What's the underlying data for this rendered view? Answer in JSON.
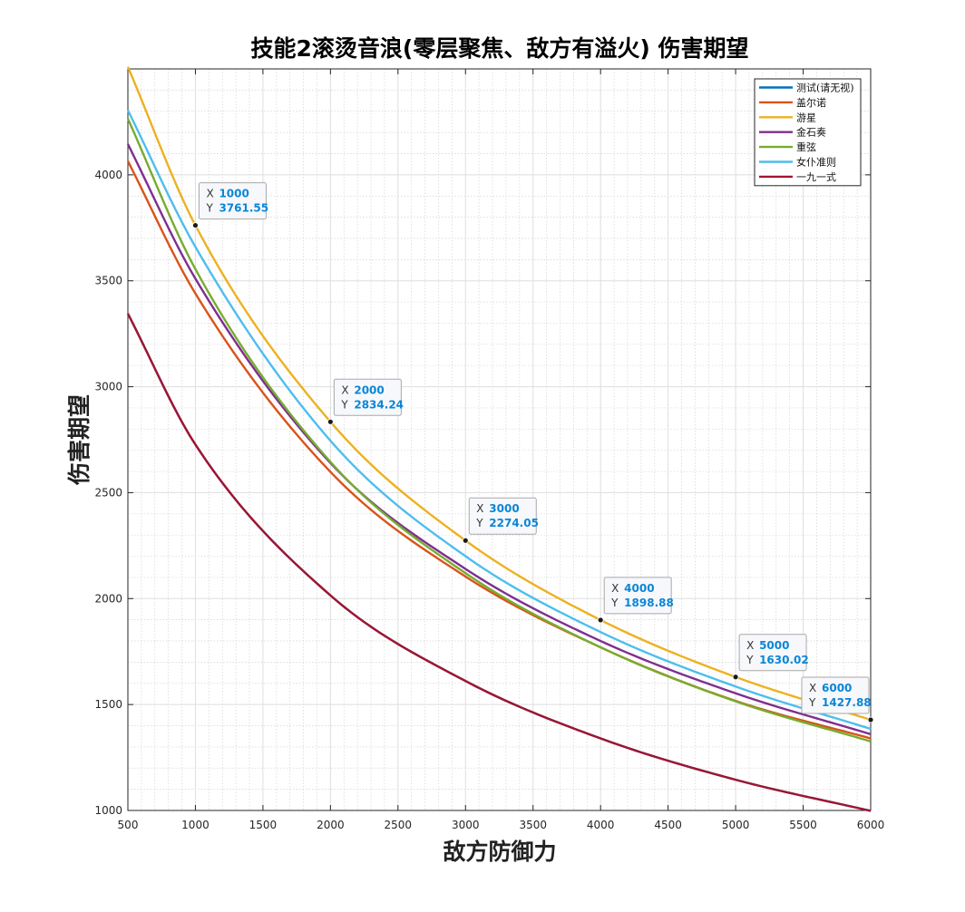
{
  "chart_data": {
    "type": "line",
    "title": "技能2滚烫音浪(零层聚焦、敌方有溢火) 伤害期望",
    "xlabel": "敌方防御力",
    "ylabel": "伤害期望",
    "xlim": [
      500,
      6000
    ],
    "ylim": [
      1000,
      4500
    ],
    "xticks": [
      500,
      1000,
      1500,
      2000,
      2500,
      3000,
      3500,
      4000,
      4500,
      5000,
      5500,
      6000
    ],
    "yticks": [
      1000,
      1500,
      2000,
      2500,
      3000,
      3500,
      4000
    ],
    "grid": true,
    "minor_grid": true,
    "legend_position": "top-right",
    "x": [
      500,
      1000,
      2000,
      3000,
      4000,
      5000,
      6000
    ],
    "series": [
      {
        "name": "测试(请无视)",
        "color": "#0072bd",
        "values": [
          3345,
          2727,
          2015,
          1611,
          1340,
          1145,
          998
        ]
      },
      {
        "name": "盖尔诺",
        "color": "#d95319",
        "values": [
          4065,
          3440,
          2598,
          2104,
          1770,
          1517,
          1340
        ]
      },
      {
        "name": "游星",
        "color": "#edb120",
        "values": [
          4510,
          3761.55,
          2834.24,
          2274.05,
          1898.88,
          1630.02,
          1427.88
        ]
      },
      {
        "name": "金石奏",
        "color": "#7e2f8e",
        "values": [
          4145,
          3510,
          2640,
          2140,
          1800,
          1553,
          1360
        ]
      },
      {
        "name": "重弦",
        "color": "#77ac30",
        "values": [
          4265,
          3555,
          2645,
          2120,
          1770,
          1515,
          1326
        ]
      },
      {
        "name": "女仆准则",
        "color": "#4dbeee",
        "values": [
          4305,
          3660,
          2745,
          2200,
          1842,
          1585,
          1385
        ]
      },
      {
        "name": "一九一式",
        "color": "#a2142f",
        "values": [
          3345,
          2727,
          2015,
          1611,
          1340,
          1145,
          998
        ]
      }
    ],
    "datatips": [
      {
        "x": "1000",
        "y": "3761.55",
        "xv": 1000,
        "yv": 3761.55
      },
      {
        "x": "2000",
        "y": "2834.24",
        "xv": 2000,
        "yv": 2834.24
      },
      {
        "x": "3000",
        "y": "2274.05",
        "xv": 3000,
        "yv": 2274.05
      },
      {
        "x": "4000",
        "y": "1898.88",
        "xv": 4000,
        "yv": 1898.88
      },
      {
        "x": "5000",
        "y": "1630.02",
        "xv": 5000,
        "yv": 1630.02
      },
      {
        "x": "6000",
        "y": "1427.88",
        "xv": 6000,
        "yv": 1427.88
      }
    ],
    "datatip_labels": {
      "x": "X",
      "y": "Y"
    }
  }
}
